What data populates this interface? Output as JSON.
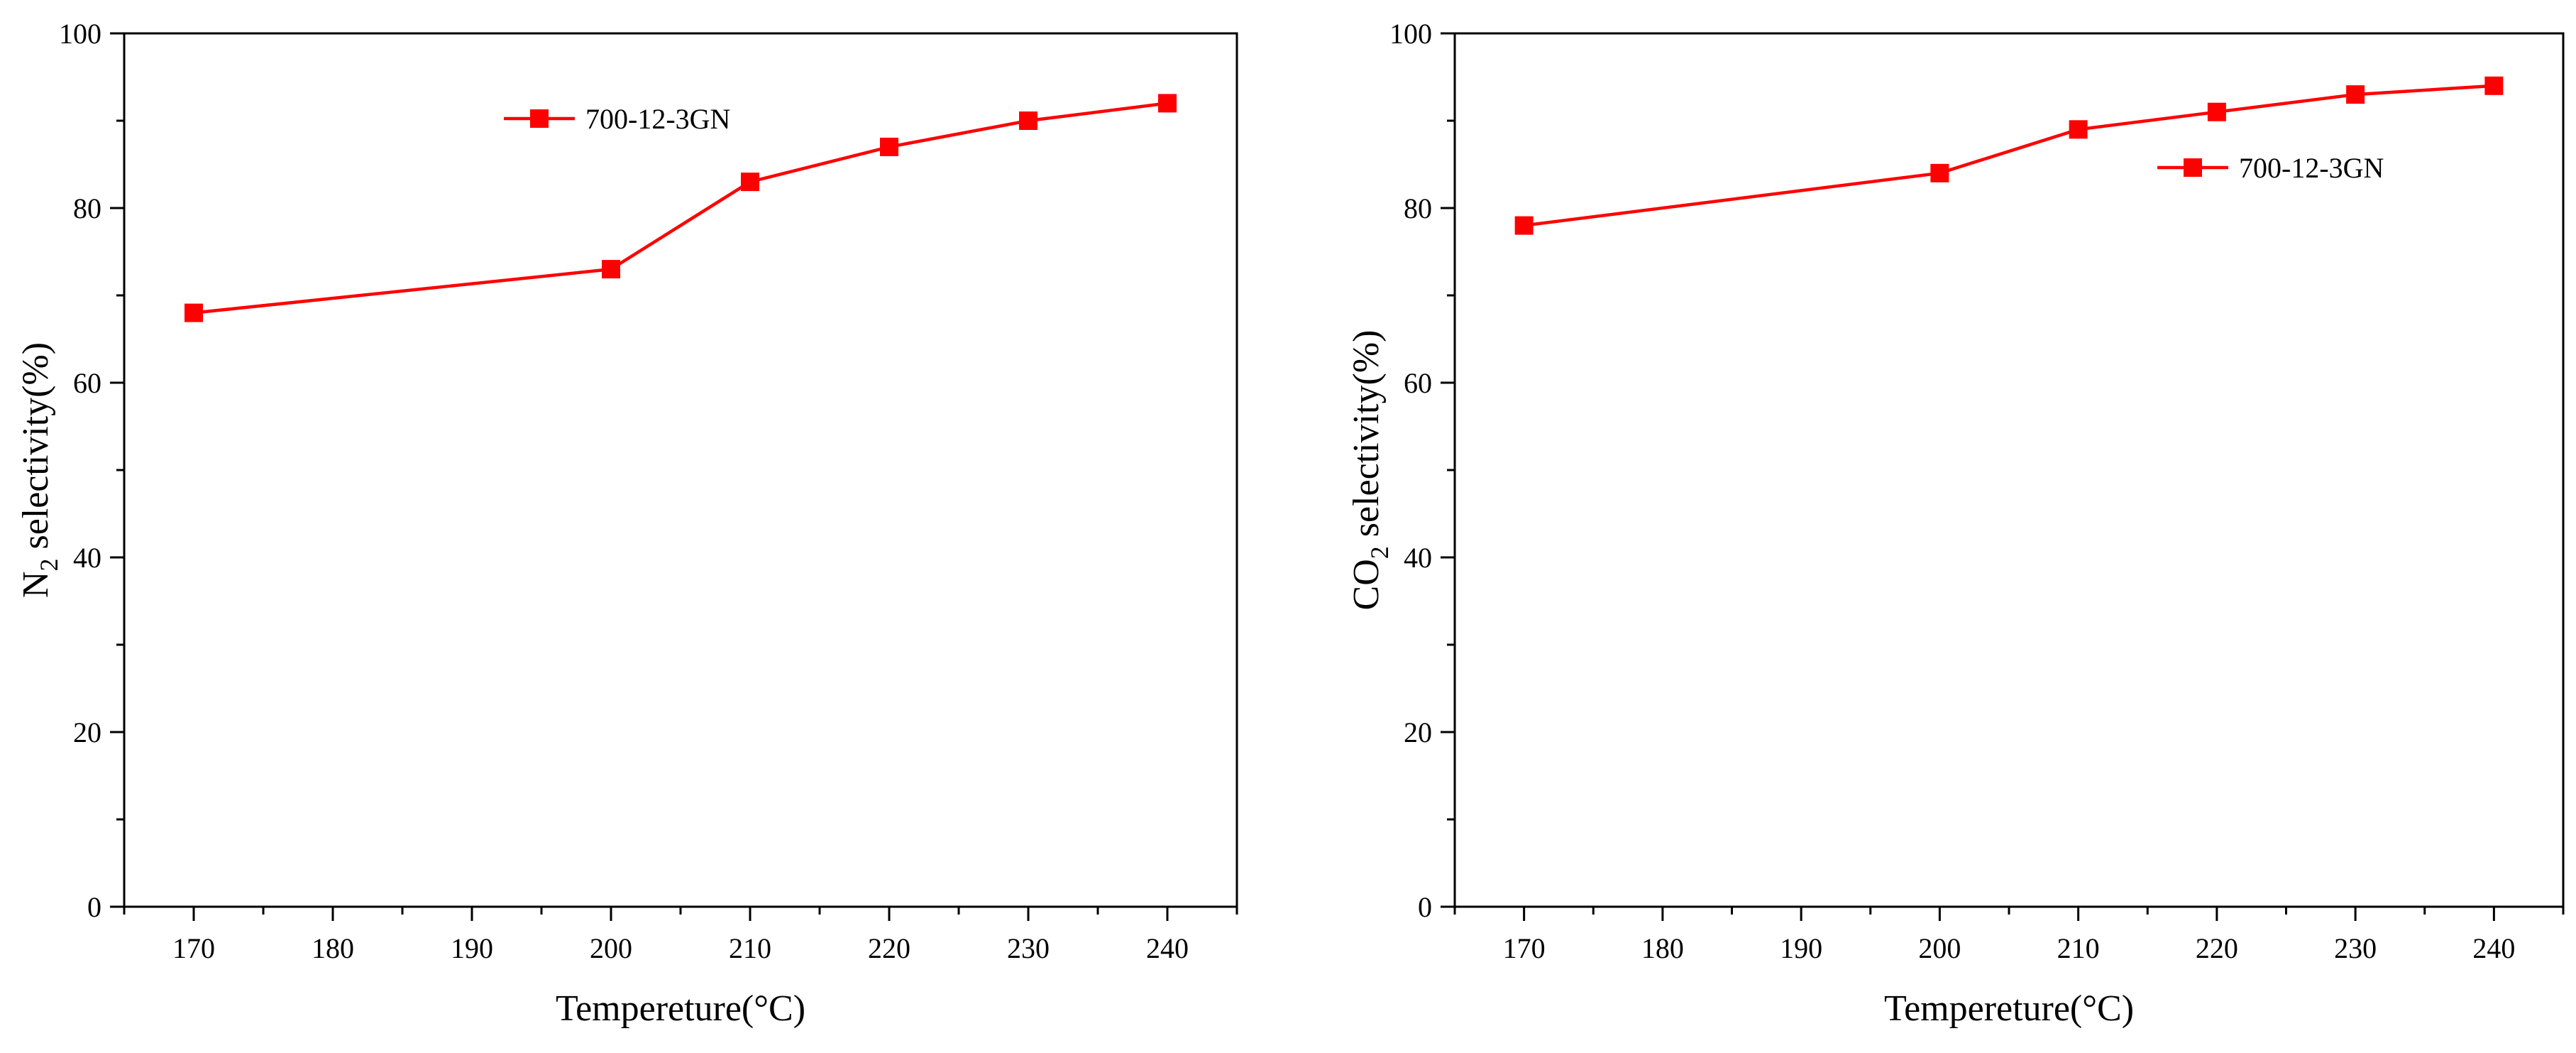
{
  "colors": {
    "series": "#ff0000",
    "axis": "#000000"
  },
  "chart_data": [
    {
      "type": "line",
      "x": [
        170,
        200,
        210,
        220,
        230,
        240
      ],
      "series": [
        {
          "name": "700-12-3GN",
          "values": [
            68,
            73,
            83,
            87,
            90,
            92
          ]
        }
      ],
      "xlabel": "Tempereture(°C)",
      "ylabel": {
        "prefix": "N",
        "subscript": "2",
        "suffix": " selectivity(%)"
      },
      "xlim": [
        165,
        245
      ],
      "ylim": [
        0,
        100
      ],
      "xticks": [
        170,
        180,
        190,
        200,
        210,
        220,
        230,
        240
      ],
      "yticks": [
        0,
        20,
        40,
        60,
        80,
        100
      ],
      "legend": "top-center",
      "grid": false
    },
    {
      "type": "line",
      "x": [
        170,
        200,
        210,
        220,
        230,
        240
      ],
      "series": [
        {
          "name": "700-12-3GN",
          "values": [
            78,
            84,
            89,
            91,
            93,
            94
          ]
        }
      ],
      "xlabel": "Tempereture(°C)",
      "ylabel": {
        "prefix": "CO",
        "subscript": "2",
        "suffix": " selectivity(%)"
      },
      "xlim": [
        165,
        245
      ],
      "ylim": [
        0,
        100
      ],
      "xticks": [
        170,
        180,
        190,
        200,
        210,
        220,
        230,
        240
      ],
      "yticks": [
        0,
        20,
        40,
        60,
        80,
        100
      ],
      "legend": "upper-right",
      "grid": false
    }
  ]
}
